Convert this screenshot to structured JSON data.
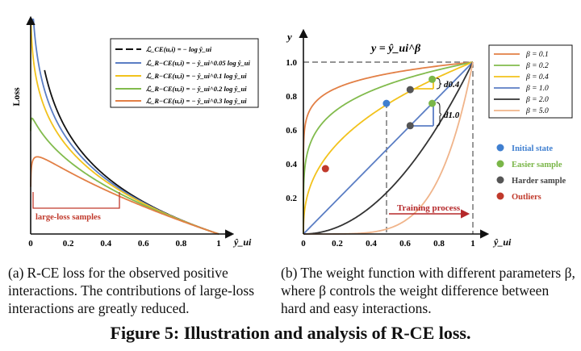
{
  "figure": {
    "main_caption": "Figure 5: Illustration and analysis of R-CE loss.",
    "subcaption_a_label": "(a)",
    "subcaption_a_text": "R-CE loss for the observed positive interactions. The contributions of large-loss interactions are greatly reduced.",
    "subcaption_b_label": "(b)",
    "subcaption_b_text": "The weight function with different parameters β, where β controls the weight difference between hard and easy interactions."
  },
  "colors": {
    "black": "#111111",
    "blue": "#5b7ec4",
    "yellow": "#f2c21c",
    "green": "#82bb4d",
    "orange": "#e27f45",
    "dark_gray": "#333333",
    "peach": "#f0b48a",
    "red": "#c0392b",
    "marker_blue": "#3f7fd0",
    "marker_green": "#7ab648",
    "marker_gray": "#555555",
    "marker_red": "#c0392b"
  },
  "chart_data": [
    {
      "type": "line",
      "ylabel": "Loss",
      "xlabel": "ŷ_ui",
      "xlim": [
        0,
        1
      ],
      "x_ticks": [
        "0",
        "0.2",
        "0.4",
        "0.6",
        "0.8",
        "1"
      ],
      "annotation": "large-loss samples",
      "series": [
        {
          "name": "ℒ_CE(u,i) = − log ŷ_ui",
          "beta": 0,
          "color": "#111111",
          "dash": true
        },
        {
          "name": "ℒ_R−CE(u,i) = − ŷ_ui^0.05 log ŷ_ui",
          "beta": 0.05,
          "color": "#5b7ec4"
        },
        {
          "name": "ℒ_R−CE(u,i) = − ŷ_ui^0.1 log ŷ_ui",
          "beta": 0.1,
          "color": "#f2c21c"
        },
        {
          "name": "ℒ_R−CE(u,i) = − ŷ_ui^0.2 log ŷ_ui",
          "beta": 0.2,
          "color": "#82bb4d"
        },
        {
          "name": "ℒ_R−CE(u,i) = − ŷ_ui^0.3 log ŷ_ui",
          "beta": 0.3,
          "color": "#e27f45"
        }
      ]
    },
    {
      "type": "line",
      "title": "y = ŷ_ui^β",
      "ylabel": "y",
      "xlabel": "ŷ_ui",
      "xlim": [
        0,
        1
      ],
      "ylim": [
        0,
        1.05
      ],
      "x_ticks": [
        "0",
        "0.2",
        "0.4",
        "0.6",
        "0.8",
        "1"
      ],
      "y_ticks": [
        "0.2",
        "0.4",
        "0.6",
        "0.8",
        "1.0"
      ],
      "series": [
        {
          "name": "β = 0.1",
          "beta": 0.1,
          "color": "#e27f45"
        },
        {
          "name": "β = 0.2",
          "beta": 0.2,
          "color": "#82bb4d"
        },
        {
          "name": "β = 0.4",
          "beta": 0.4,
          "color": "#f2c21c"
        },
        {
          "name": "β = 1.0",
          "beta": 1.0,
          "color": "#5b7ec4"
        },
        {
          "name": "β = 2.0",
          "beta": 2.0,
          "color": "#333333"
        },
        {
          "name": "β = 5.0",
          "beta": 5.0,
          "color": "#f0b48a"
        }
      ],
      "points": [
        {
          "x": 0.49,
          "y": 0.76,
          "type": "Initial state"
        },
        {
          "x": 0.76,
          "y": 0.9,
          "type": "Easier sample"
        },
        {
          "x": 0.76,
          "y": 0.76,
          "type": "Easier sample"
        },
        {
          "x": 0.63,
          "y": 0.84,
          "type": "Harder sample"
        },
        {
          "x": 0.63,
          "y": 0.63,
          "type": "Harder sample"
        },
        {
          "x": 0.13,
          "y": 0.38,
          "type": "Outliers"
        }
      ],
      "point_legend": [
        "Initial state",
        "Easier sample",
        "Harder sample",
        "Outliers"
      ],
      "annotations": {
        "d_upper": "d0.4",
        "d_lower": "d1.0",
        "training": "Training process"
      }
    }
  ]
}
